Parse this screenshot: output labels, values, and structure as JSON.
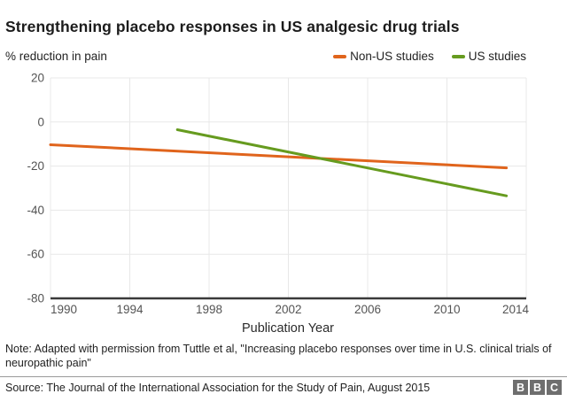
{
  "header": {
    "title": "Strengthening placebo responses in US analgesic drug trials"
  },
  "chart_data": {
    "type": "line",
    "title": "Strengthening placebo responses in US analgesic drug trials",
    "xlabel": "Publication Year",
    "ylabel": "% reduction in pain",
    "xlim": [
      1990,
      2014
    ],
    "ylim": [
      -80,
      20
    ],
    "xticks": [
      1990,
      1994,
      1998,
      2002,
      2006,
      2010,
      2014
    ],
    "yticks": [
      20,
      0,
      -20,
      -40,
      -60,
      -80
    ],
    "grid": true,
    "legend_position": "top-right",
    "series": [
      {
        "name": "Non-US studies",
        "color": "#e0641c",
        "points": [
          [
            1990,
            -10.3
          ],
          [
            2013,
            -20.8
          ]
        ]
      },
      {
        "name": "US studies",
        "color": "#669b1f",
        "points": [
          [
            1996.4,
            -3.5
          ],
          [
            2013,
            -33.5
          ]
        ]
      }
    ],
    "colors": {
      "grid": "#e8e8e8",
      "axis": "#3a3a3a",
      "tick_text": "#545454"
    }
  },
  "footer": {
    "note": "Note: Adapted with permission from Tuttle et al, \"Increasing placebo responses over time in U.S. clinical trials of neuropathic pain\"",
    "source": "Source: The Journal of the International Association for the Study of Pain, August 2015",
    "logo_letters": [
      "B",
      "B",
      "C"
    ]
  }
}
